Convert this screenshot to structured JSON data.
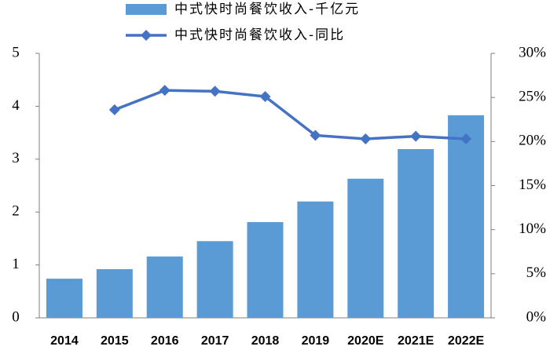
{
  "chart_data": {
    "type": "bar-line",
    "categories": [
      "2014",
      "2015",
      "2016",
      "2017",
      "2018",
      "2019",
      "2020E",
      "2021E",
      "2022E"
    ],
    "series": [
      {
        "name": "中式快时尚餐饮收入-千亿元",
        "type": "bar",
        "color": "#5b9bd5",
        "values": [
          0.74,
          0.92,
          1.16,
          1.45,
          1.81,
          2.2,
          2.63,
          3.19,
          3.83
        ]
      },
      {
        "name": "中式快时尚餐饮收入-同比",
        "type": "line",
        "axis": "y2",
        "color": "#4472c4",
        "values": [
          null,
          23.6,
          25.8,
          25.7,
          25.1,
          20.7,
          20.3,
          20.6,
          20.3
        ]
      }
    ],
    "ylim": [
      0,
      5
    ],
    "yticks": [
      0,
      1,
      2,
      3,
      4,
      5
    ],
    "y2lim": [
      0,
      30
    ],
    "y2ticks": [
      {
        "value": 0,
        "label": "0%"
      },
      {
        "value": 5,
        "label": "5%"
      },
      {
        "value": 10,
        "label": "10%"
      },
      {
        "value": 15,
        "label": "15%"
      },
      {
        "value": 20,
        "label": "20%"
      },
      {
        "value": 25,
        "label": "25%"
      },
      {
        "value": 30,
        "label": "30%"
      }
    ],
    "grid": false
  }
}
